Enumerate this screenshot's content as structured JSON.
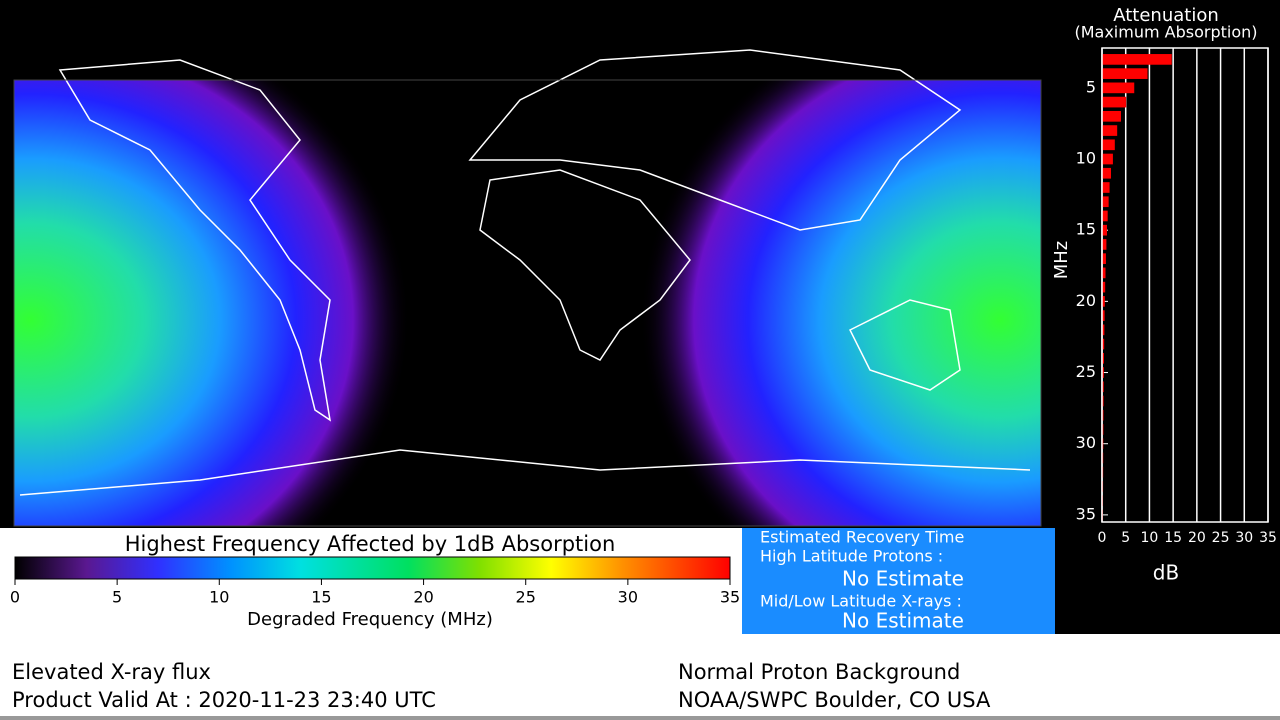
{
  "chart_data": {
    "type": "bar",
    "orientation": "horizontal",
    "title": "Attenuation",
    "subtitle": "(Maximum Absorption)",
    "y_label": "MHz",
    "x_label": "dB",
    "y": [
      3,
      4,
      5,
      6,
      7,
      8,
      9,
      10,
      11,
      12,
      13,
      14,
      15,
      16,
      17,
      18,
      19,
      20,
      21,
      22,
      23,
      24,
      25,
      26,
      27,
      28,
      29,
      30,
      31,
      32,
      33,
      34,
      35
    ],
    "values": [
      14.7,
      9.6,
      6.8,
      5.1,
      4.0,
      3.2,
      2.7,
      2.3,
      1.9,
      1.6,
      1.4,
      1.2,
      1.05,
      0.93,
      0.83,
      0.74,
      0.67,
      0.6,
      0.55,
      0.5,
      0.46,
      0.42,
      0.39,
      0.36,
      0.33,
      0.31,
      0.29,
      0.27,
      0.25,
      0.24,
      0.22,
      0.21,
      0.2
    ],
    "color": "#ff0000",
    "ylim": [
      2.2,
      35.5
    ],
    "y_inverted": true,
    "yticks": [
      5,
      10,
      15,
      20,
      25,
      30,
      35
    ],
    "xlim": [
      0,
      35
    ],
    "xticks": [
      0,
      5,
      10,
      15,
      20,
      25,
      30,
      35
    ],
    "grid": true
  },
  "colorbar": {
    "title": "Highest Frequency Affected by 1dB Absorption",
    "label": "Degraded Frequency (MHz)",
    "xlim": [
      0,
      35
    ],
    "ticks": [
      0,
      5,
      10,
      15,
      20,
      25,
      30,
      35
    ]
  },
  "recovery": {
    "title": "Estimated Recovery Time",
    "high_label": "High Latitude Protons :",
    "high_value": "No Estimate",
    "mid_label": "Mid/Low Latitude X-rays :",
    "mid_value": "No Estimate"
  },
  "footer": {
    "status": "Elevated X-ray flux",
    "valid": "Product Valid At : 2020-11-23 23:40 UTC",
    "proton": "Normal Proton Background",
    "source": "NOAA/SWPC Boulder, CO USA"
  }
}
